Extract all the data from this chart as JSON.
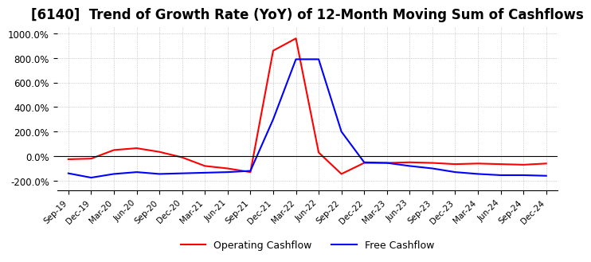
{
  "title": "[6140]  Trend of Growth Rate (YoY) of 12-Month Moving Sum of Cashflows",
  "title_fontsize": 12,
  "ylim": [
    -280,
    1050
  ],
  "yticks": [
    -200,
    0,
    200,
    400,
    600,
    800,
    1000
  ],
  "background_color": "#ffffff",
  "operating_color": "#ff0000",
  "free_color": "#0000ff",
  "legend_labels": [
    "Operating Cashflow",
    "Free Cashflow"
  ],
  "x_labels": [
    "Sep-19",
    "Dec-19",
    "Mar-20",
    "Jun-20",
    "Sep-20",
    "Dec-20",
    "Mar-21",
    "Jun-21",
    "Sep-21",
    "Dec-21",
    "Mar-22",
    "Jun-22",
    "Sep-22",
    "Dec-22",
    "Mar-23",
    "Jun-23",
    "Sep-23",
    "Dec-23",
    "Mar-24",
    "Jun-24",
    "Sep-24",
    "Dec-24"
  ],
  "operating_cashflow": [
    -25,
    -20,
    50,
    65,
    35,
    -10,
    -80,
    -100,
    -130,
    860,
    960,
    30,
    -145,
    -55,
    -55,
    -50,
    -55,
    -65,
    -60,
    -65,
    -70,
    -60
  ],
  "free_cashflow": [
    -140,
    -175,
    -145,
    -130,
    -145,
    -140,
    -135,
    -130,
    -120,
    300,
    790,
    790,
    200,
    -50,
    -55,
    -80,
    -100,
    -130,
    -145,
    -155,
    -155,
    -160
  ]
}
